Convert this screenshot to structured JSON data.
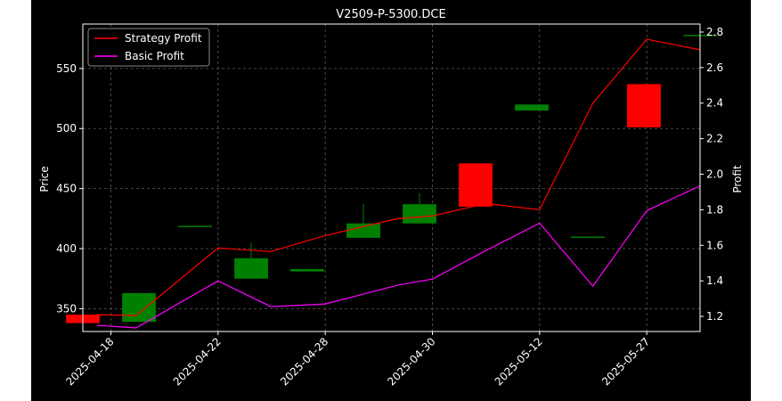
{
  "chart_data": {
    "type": "candlestick+line",
    "title": "V2509-P-5300.DCE",
    "xlabel": "",
    "ylabel_left": "Price",
    "ylabel_right": "Profit",
    "ylim_left": [
      331,
      587
    ],
    "ylim_right": [
      1.115,
      2.845
    ],
    "xlim": [
      -0.5,
      10.5
    ],
    "y_ticks_left": [
      350,
      400,
      450,
      500,
      550
    ],
    "y_ticks_right": [
      1.2,
      1.4,
      1.6,
      1.8,
      2.0,
      2.2,
      2.4,
      2.6,
      2.8
    ],
    "y_tick_labels_right": [
      "1.2",
      "1.4",
      "1.6",
      "1.8",
      "2.0",
      "2.2",
      "2.4",
      "2.6",
      "2.8"
    ],
    "x_ticks": [
      {
        "pos": 0,
        "label": "2025-04-18"
      },
      {
        "pos": 1.91,
        "label": "2025-04-22"
      },
      {
        "pos": 3.82,
        "label": "2025-04-28"
      },
      {
        "pos": 5.73,
        "label": "2025-04-30"
      },
      {
        "pos": 7.64,
        "label": "2025-05-12"
      },
      {
        "pos": 9.55,
        "label": "2025-05-27"
      }
    ],
    "grid": true,
    "legend_position": "top-left",
    "candles": [
      {
        "open": 345,
        "close": 338,
        "high": 350,
        "low": 337
      },
      {
        "open": 339,
        "close": 363,
        "high": 363,
        "low": 339
      },
      {
        "open": 419,
        "close": 419,
        "high": 419,
        "low": 419
      },
      {
        "open": 375,
        "close": 392,
        "high": 405,
        "low": 375
      },
      {
        "open": 381,
        "close": 383,
        "high": 383,
        "low": 381
      },
      {
        "open": 409,
        "close": 421,
        "high": 437,
        "low": 409
      },
      {
        "open": 421,
        "close": 437,
        "high": 446,
        "low": 421
      },
      {
        "open": 471,
        "close": 435,
        "high": 471,
        "low": 435
      },
      {
        "open": 515,
        "close": 520,
        "high": 520,
        "low": 515
      },
      {
        "open": 410,
        "close": 410,
        "high": 410,
        "low": 410
      },
      {
        "open": 537,
        "close": 501,
        "high": 537,
        "low": 501
      },
      {
        "open": 578,
        "close": 578,
        "high": 578,
        "low": 578
      }
    ],
    "series": [
      {
        "name": "Strategy Profit",
        "color": "#ff0000",
        "x": [
          -0.25,
          0.45,
          1.91,
          2.85,
          3.82,
          5.1,
          5.73,
          6.68,
          7.64,
          8.59,
          9.55,
          10.5
        ],
        "values": [
          1.21,
          1.205,
          1.585,
          1.565,
          1.655,
          1.75,
          1.765,
          1.835,
          1.8,
          2.4,
          2.76,
          2.7
        ]
      },
      {
        "name": "Basic Profit",
        "color": "#ff00ff",
        "x": [
          -0.25,
          0.45,
          1.91,
          2.85,
          3.82,
          5.1,
          5.73,
          6.68,
          7.64,
          8.59,
          9.55,
          10.5
        ],
        "values": [
          1.15,
          1.135,
          1.4,
          1.255,
          1.27,
          1.375,
          1.41,
          1.57,
          1.725,
          1.37,
          1.795,
          1.935
        ]
      }
    ],
    "colors": {
      "figure_bg": "#ffffff",
      "plot_bg": "#000000",
      "up": "#008000",
      "down": "#ff0000",
      "text": "#ffffff",
      "grid": "#5a5a5a"
    }
  }
}
